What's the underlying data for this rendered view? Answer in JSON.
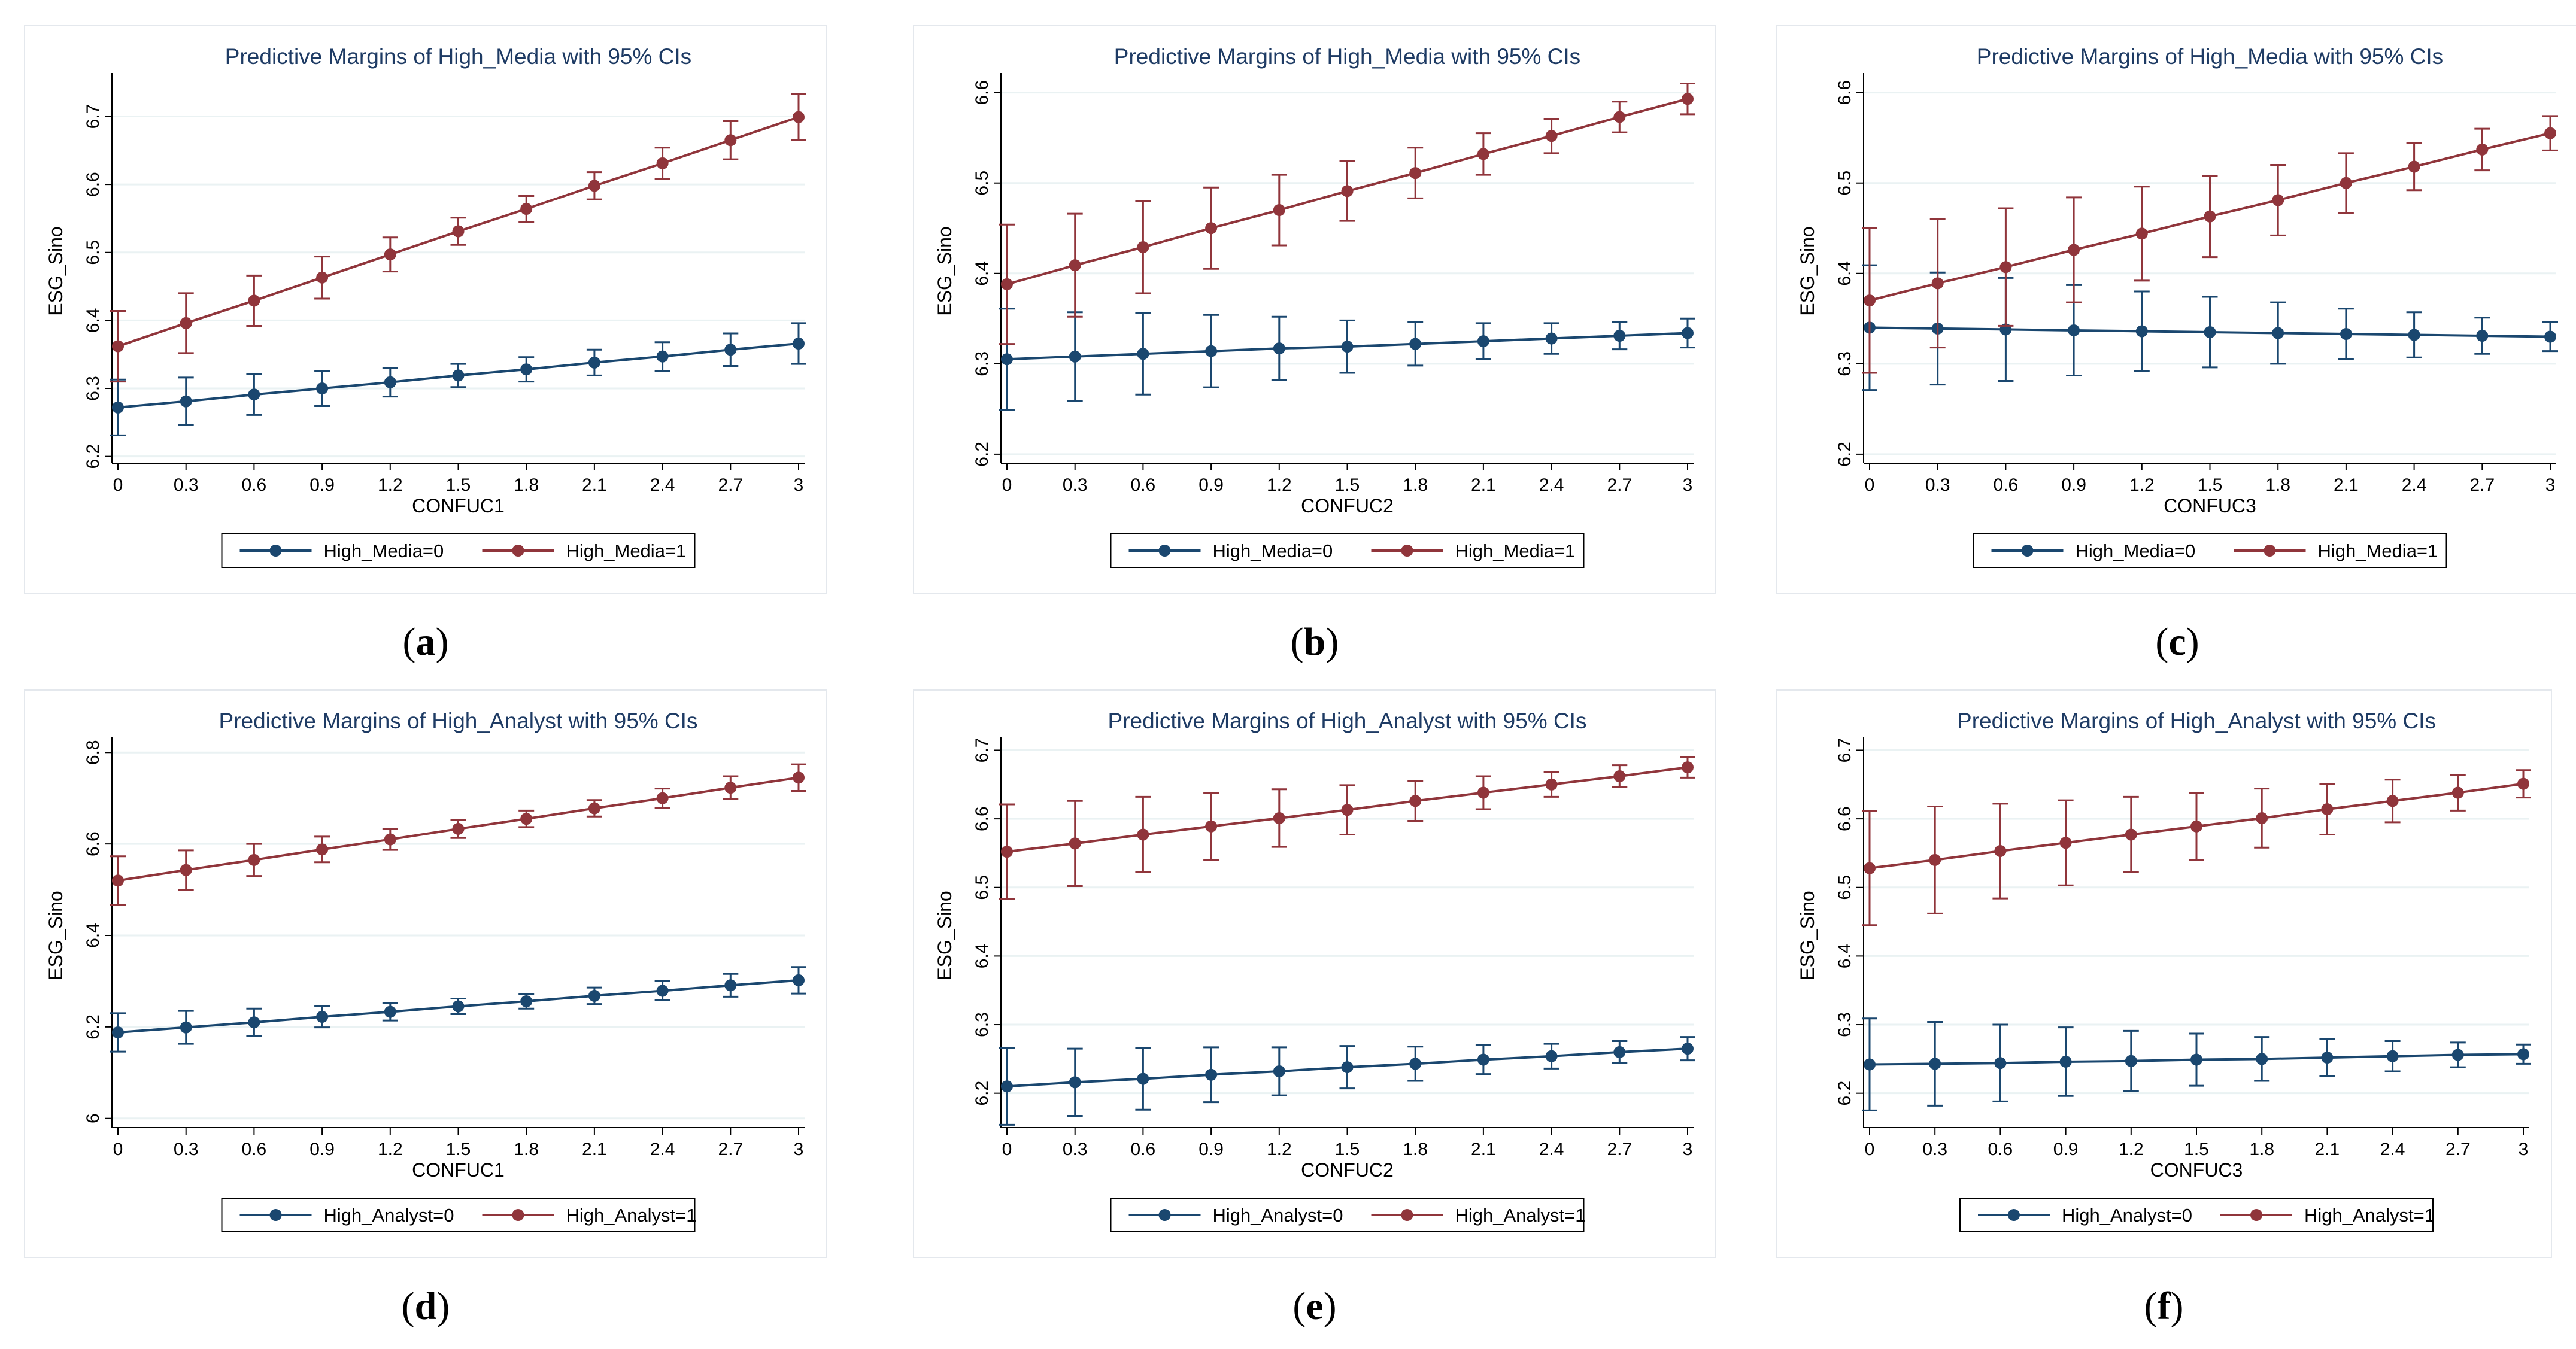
{
  "colors": {
    "series0": "#1a476f",
    "series1": "#90353b",
    "grid": "#eaf2f3",
    "axis": "#000000"
  },
  "chart_data": [
    {
      "type": "line",
      "panel": "a",
      "caption_letter": "a",
      "title": "Predictive Margins of High_Media with 95% CIs",
      "xlabel": "CONFUC1",
      "ylabel": "ESG_Sino",
      "x": [
        0,
        0.3,
        0.6,
        0.9,
        1.2,
        1.5,
        1.8,
        2.1,
        2.4,
        2.7,
        3
      ],
      "x_tick_labels": [
        "0",
        "0.3",
        "0.6",
        "0.9",
        "1.2",
        "1.5",
        "1.8",
        "2.1",
        "2.4",
        "2.7",
        "3"
      ],
      "yticks": [
        6.2,
        6.3,
        6.4,
        6.5,
        6.6,
        6.7
      ],
      "y_tick_labels": [
        "6.2",
        "6.3",
        "6.4",
        "6.5",
        "6.6",
        "6.7"
      ],
      "ylim": [
        6.19,
        6.755
      ],
      "grid": true,
      "legend_position": "bottom",
      "series": [
        {
          "name": "High_Media=0",
          "values": [
            6.272,
            6.281,
            6.291,
            6.3,
            6.309,
            6.319,
            6.328,
            6.338,
            6.347,
            6.357,
            6.366
          ],
          "ci_low": [
            6.231,
            6.246,
            6.261,
            6.274,
            6.288,
            6.302,
            6.31,
            6.319,
            6.326,
            6.333,
            6.336
          ],
          "ci_high": [
            6.313,
            6.316,
            6.321,
            6.326,
            6.33,
            6.336,
            6.346,
            6.357,
            6.368,
            6.381,
            6.396
          ]
        },
        {
          "name": "High_Media=1",
          "values": [
            6.362,
            6.396,
            6.429,
            6.463,
            6.497,
            6.531,
            6.564,
            6.598,
            6.631,
            6.665,
            6.699
          ],
          "ci_low": [
            6.31,
            6.352,
            6.392,
            6.432,
            6.472,
            6.511,
            6.545,
            6.578,
            6.608,
            6.637,
            6.665
          ],
          "ci_high": [
            6.414,
            6.44,
            6.466,
            6.494,
            6.522,
            6.551,
            6.583,
            6.618,
            6.654,
            6.693,
            6.733
          ]
        }
      ]
    },
    {
      "type": "line",
      "panel": "b",
      "caption_letter": "b",
      "title": "Predictive Margins of High_Media with 95% CIs",
      "xlabel": "CONFUC2",
      "ylabel": "ESG_Sino",
      "x": [
        0,
        0.3,
        0.6,
        0.9,
        1.2,
        1.5,
        1.8,
        2.1,
        2.4,
        2.7,
        3
      ],
      "x_tick_labels": [
        "0",
        "0.3",
        "0.6",
        "0.9",
        "1.2",
        "1.5",
        "1.8",
        "2.1",
        "2.4",
        "2.7",
        "3"
      ],
      "yticks": [
        6.2,
        6.3,
        6.4,
        6.5,
        6.6
      ],
      "y_tick_labels": [
        "6.2",
        "6.3",
        "6.4",
        "6.5",
        "6.6"
      ],
      "ylim": [
        6.19,
        6.615
      ],
      "grid": true,
      "legend_position": "bottom",
      "series": [
        {
          "name": "High_Media=0",
          "values": [
            6.305,
            6.308,
            6.311,
            6.314,
            6.317,
            6.319,
            6.322,
            6.325,
            6.328,
            6.331,
            6.334
          ],
          "ci_low": [
            6.249,
            6.259,
            6.266,
            6.274,
            6.282,
            6.29,
            6.298,
            6.305,
            6.311,
            6.316,
            6.318
          ],
          "ci_high": [
            6.361,
            6.357,
            6.356,
            6.354,
            6.352,
            6.348,
            6.346,
            6.345,
            6.345,
            6.346,
            6.35
          ]
        },
        {
          "name": "High_Media=1",
          "values": [
            6.388,
            6.409,
            6.429,
            6.45,
            6.47,
            6.491,
            6.511,
            6.532,
            6.552,
            6.573,
            6.593
          ],
          "ci_low": [
            6.322,
            6.352,
            6.378,
            6.405,
            6.431,
            6.458,
            6.483,
            6.509,
            6.533,
            6.556,
            6.576
          ],
          "ci_high": [
            6.454,
            6.466,
            6.48,
            6.495,
            6.509,
            6.524,
            6.539,
            6.555,
            6.571,
            6.59,
            6.61
          ]
        }
      ]
    },
    {
      "type": "line",
      "panel": "c",
      "caption_letter": "c",
      "title": "Predictive Margins of High_Media with 95% CIs",
      "xlabel": "CONFUC3",
      "ylabel": "ESG_Sino",
      "x": [
        0,
        0.3,
        0.6,
        0.9,
        1.2,
        1.5,
        1.8,
        2.1,
        2.4,
        2.7,
        3
      ],
      "x_tick_labels": [
        "0",
        "0.3",
        "0.6",
        "0.9",
        "1.2",
        "1.5",
        "1.8",
        "2.1",
        "2.4",
        "2.7",
        "3"
      ],
      "yticks": [
        6.2,
        6.3,
        6.4,
        6.5,
        6.6
      ],
      "y_tick_labels": [
        "6.2",
        "6.3",
        "6.4",
        "6.5",
        "6.6"
      ],
      "ylim": [
        6.19,
        6.615
      ],
      "grid": true,
      "legend_position": "bottom",
      "series": [
        {
          "name": "High_Media=0",
          "values": [
            6.34,
            6.339,
            6.338,
            6.337,
            6.336,
            6.335,
            6.334,
            6.333,
            6.332,
            6.331,
            6.33
          ],
          "ci_low": [
            6.271,
            6.277,
            6.281,
            6.287,
            6.292,
            6.296,
            6.3,
            6.305,
            6.307,
            6.311,
            6.314
          ],
          "ci_high": [
            6.409,
            6.401,
            6.395,
            6.387,
            6.38,
            6.374,
            6.368,
            6.361,
            6.357,
            6.351,
            6.346
          ]
        },
        {
          "name": "High_Media=1",
          "values": [
            6.37,
            6.389,
            6.407,
            6.426,
            6.444,
            6.463,
            6.481,
            6.5,
            6.518,
            6.537,
            6.555
          ],
          "ci_low": [
            6.29,
            6.318,
            6.342,
            6.368,
            6.392,
            6.418,
            6.442,
            6.467,
            6.492,
            6.514,
            6.536
          ],
          "ci_high": [
            6.45,
            6.46,
            6.472,
            6.484,
            6.496,
            6.508,
            6.52,
            6.533,
            6.544,
            6.56,
            6.574
          ]
        }
      ]
    },
    {
      "type": "line",
      "panel": "d",
      "caption_letter": "d",
      "title": "Predictive Margins of High_Analyst with 95% CIs",
      "xlabel": "CONFUC1",
      "ylabel": "ESG_Sino",
      "x": [
        0,
        0.3,
        0.6,
        0.9,
        1.2,
        1.5,
        1.8,
        2.1,
        2.4,
        2.7,
        3
      ],
      "x_tick_labels": [
        "0",
        "0.3",
        "0.6",
        "0.9",
        "1.2",
        "1.5",
        "1.8",
        "2.1",
        "2.4",
        "2.7",
        "3"
      ],
      "yticks": [
        6.0,
        6.2,
        6.4,
        6.6,
        6.8
      ],
      "y_tick_labels": [
        "6",
        "6.2",
        "6.4",
        "6.6",
        "6.8"
      ],
      "ylim": [
        5.98,
        6.82
      ],
      "grid": true,
      "legend_position": "bottom",
      "series": [
        {
          "name": "High_Analyst=0",
          "values": [
            6.188,
            6.199,
            6.21,
            6.222,
            6.233,
            6.245,
            6.256,
            6.268,
            6.279,
            6.291,
            6.302
          ],
          "ci_low": [
            6.146,
            6.163,
            6.18,
            6.199,
            6.214,
            6.228,
            6.24,
            6.25,
            6.258,
            6.266,
            6.273
          ],
          "ci_high": [
            6.23,
            6.235,
            6.24,
            6.245,
            6.252,
            6.262,
            6.272,
            6.286,
            6.3,
            6.316,
            6.331
          ]
        },
        {
          "name": "High_Analyst=1",
          "values": [
            6.52,
            6.543,
            6.565,
            6.588,
            6.61,
            6.633,
            6.655,
            6.678,
            6.7,
            6.723,
            6.745
          ],
          "ci_low": [
            6.467,
            6.5,
            6.53,
            6.56,
            6.587,
            6.613,
            6.637,
            6.66,
            6.679,
            6.698,
            6.716
          ],
          "ci_high": [
            6.573,
            6.586,
            6.6,
            6.616,
            6.633,
            6.653,
            6.673,
            6.696,
            6.721,
            6.748,
            6.774
          ]
        }
      ]
    },
    {
      "type": "line",
      "panel": "e",
      "caption_letter": "e",
      "title": "Predictive Margins of High_Analyst with 95% CIs",
      "xlabel": "CONFUC2",
      "ylabel": "ESG_Sino",
      "x": [
        0,
        0.3,
        0.6,
        0.9,
        1.2,
        1.5,
        1.8,
        2.1,
        2.4,
        2.7,
        3
      ],
      "x_tick_labels": [
        "0",
        "0.3",
        "0.6",
        "0.9",
        "1.2",
        "1.5",
        "1.8",
        "2.1",
        "2.4",
        "2.7",
        "3"
      ],
      "yticks": [
        6.2,
        6.3,
        6.4,
        6.5,
        6.6,
        6.7
      ],
      "y_tick_labels": [
        "6.2",
        "6.3",
        "6.4",
        "6.5",
        "6.6",
        "6.7"
      ],
      "ylim": [
        6.15,
        6.71
      ],
      "grid": true,
      "legend_position": "bottom",
      "series": [
        {
          "name": "High_Analyst=0",
          "values": [
            6.21,
            6.216,
            6.221,
            6.227,
            6.232,
            6.238,
            6.243,
            6.249,
            6.254,
            6.26,
            6.265
          ],
          "ci_low": [
            6.154,
            6.167,
            6.176,
            6.187,
            6.197,
            6.207,
            6.218,
            6.228,
            6.236,
            6.244,
            6.248
          ],
          "ci_high": [
            6.266,
            6.265,
            6.266,
            6.267,
            6.267,
            6.269,
            6.268,
            6.27,
            6.272,
            6.276,
            6.282
          ]
        },
        {
          "name": "High_Analyst=1",
          "values": [
            6.552,
            6.564,
            6.577,
            6.589,
            6.601,
            6.613,
            6.626,
            6.638,
            6.65,
            6.662,
            6.675
          ],
          "ci_low": [
            6.483,
            6.502,
            6.522,
            6.54,
            6.559,
            6.577,
            6.597,
            6.614,
            6.632,
            6.646,
            6.66
          ],
          "ci_high": [
            6.621,
            6.626,
            6.632,
            6.638,
            6.643,
            6.649,
            6.655,
            6.662,
            6.668,
            6.678,
            6.69
          ]
        }
      ]
    },
    {
      "type": "line",
      "panel": "f",
      "caption_letter": "f",
      "title": "Predictive Margins of High_Analyst with 95% CIs",
      "xlabel": "CONFUC3",
      "ylabel": "ESG_Sino",
      "x": [
        0,
        0.3,
        0.6,
        0.9,
        1.2,
        1.5,
        1.8,
        2.1,
        2.4,
        2.7,
        3
      ],
      "x_tick_labels": [
        "0",
        "0.3",
        "0.6",
        "0.9",
        "1.2",
        "1.5",
        "1.8",
        "2.1",
        "2.4",
        "2.7",
        "3"
      ],
      "yticks": [
        6.2,
        6.3,
        6.4,
        6.5,
        6.6,
        6.7
      ],
      "y_tick_labels": [
        "6.2",
        "6.3",
        "6.4",
        "6.5",
        "6.6",
        "6.7"
      ],
      "ylim": [
        6.15,
        6.71
      ],
      "grid": true,
      "legend_position": "bottom",
      "series": [
        {
          "name": "High_Analyst=0",
          "values": [
            6.242,
            6.243,
            6.244,
            6.246,
            6.247,
            6.249,
            6.25,
            6.252,
            6.254,
            6.256,
            6.257
          ],
          "ci_low": [
            6.175,
            6.182,
            6.188,
            6.196,
            6.203,
            6.211,
            6.218,
            6.225,
            6.232,
            6.238,
            6.243
          ],
          "ci_high": [
            6.309,
            6.304,
            6.3,
            6.296,
            6.291,
            6.287,
            6.282,
            6.279,
            6.276,
            6.274,
            6.271
          ]
        },
        {
          "name": "High_Analyst=1",
          "values": [
            6.528,
            6.54,
            6.553,
            6.565,
            6.577,
            6.589,
            6.601,
            6.614,
            6.626,
            6.638,
            6.651
          ],
          "ci_low": [
            6.445,
            6.462,
            6.484,
            6.503,
            6.522,
            6.54,
            6.558,
            6.577,
            6.595,
            6.612,
            6.631
          ],
          "ci_high": [
            6.611,
            6.618,
            6.622,
            6.627,
            6.632,
            6.638,
            6.644,
            6.651,
            6.657,
            6.664,
            6.671
          ]
        }
      ]
    }
  ]
}
